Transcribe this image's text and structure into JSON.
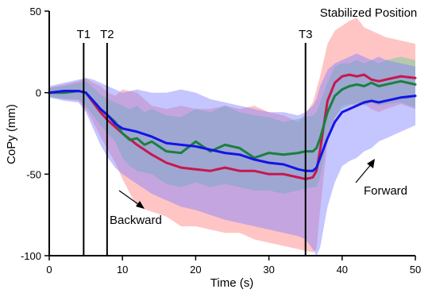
{
  "chart_data": {
    "type": "line",
    "title": "",
    "xlabel": "Time (s)",
    "ylabel": "CoPy (mm)",
    "xlim": [
      0,
      50
    ],
    "ylim": [
      -100,
      50
    ],
    "xticks": [
      0,
      10,
      20,
      30,
      40,
      50
    ],
    "yticks": [
      50,
      0,
      -50,
      -100
    ],
    "grid": false,
    "markers": [
      {
        "label": "T1",
        "x": 4.7
      },
      {
        "label": "T2",
        "x": 7.9
      },
      {
        "label": "T3",
        "x": 35.0
      }
    ],
    "annotations": {
      "stabilized": "Stabilized Position",
      "backward": "Backward",
      "forward": "Forward"
    },
    "series": [
      {
        "color": "#c8164e",
        "band_color": "#ff7f7f",
        "x": [
          0,
          2,
          4,
          5,
          6,
          7,
          8,
          9,
          10,
          12,
          14,
          16,
          18,
          20,
          22,
          24,
          26,
          28,
          30,
          32,
          34,
          35,
          36,
          36.5,
          37,
          38,
          39,
          40,
          41,
          42,
          43,
          44,
          45,
          46,
          48,
          50
        ],
        "y": [
          0,
          1,
          1,
          0,
          -6,
          -12,
          -17,
          -21,
          -25,
          -32,
          -38,
          -43,
          -46,
          -47,
          -48,
          -46,
          -48,
          -48,
          -50,
          -50,
          -52,
          -53,
          -52,
          -48,
          -35,
          -5,
          6,
          10,
          11,
          10,
          11,
          8,
          7,
          8,
          10,
          9
        ],
        "lower": [
          -2,
          -4,
          -5,
          -10,
          -18,
          -27,
          -35,
          -43,
          -53,
          -70,
          -73,
          -76,
          -82,
          -82,
          -84,
          -86,
          -86,
          -90,
          -92,
          -94,
          -96,
          -97,
          -98,
          -96,
          -72,
          -30,
          -16,
          -8,
          -7,
          -8,
          -7,
          -10,
          -12,
          -10,
          -7,
          -10
        ],
        "upper": [
          3,
          5,
          7,
          9,
          6,
          4,
          0,
          -2,
          2,
          0,
          -8,
          -10,
          -8,
          -10,
          -10,
          -8,
          -10,
          -8,
          -12,
          -14,
          -18,
          -13,
          -6,
          2,
          10,
          30,
          38,
          41,
          44,
          46,
          40,
          38,
          36,
          34,
          32,
          30
        ]
      },
      {
        "color": "#1a8040",
        "band_color": "#5fcf8f",
        "x": [
          0,
          2,
          4,
          5,
          6,
          7,
          8,
          9,
          10,
          11,
          12,
          13,
          14,
          16,
          18,
          20,
          22,
          24,
          26,
          28,
          30,
          32,
          34,
          35,
          36,
          36.5,
          37,
          38,
          39,
          40,
          41,
          42,
          43,
          44,
          45,
          46,
          48,
          50
        ],
        "y": [
          0,
          0,
          1,
          0,
          -5,
          -10,
          -14,
          -18,
          -25,
          -29,
          -28,
          -32,
          -30,
          -36,
          -37,
          -30,
          -36,
          -32,
          -34,
          -40,
          -37,
          -38,
          -37,
          -36,
          -36,
          -34,
          -28,
          -12,
          -2,
          2,
          4,
          5,
          4,
          6,
          4,
          5,
          7,
          5
        ],
        "lower": [
          -3,
          -4,
          -4,
          -8,
          -14,
          -20,
          -25,
          -30,
          -40,
          -45,
          -48,
          -49,
          -50,
          -56,
          -58,
          -55,
          -58,
          -56,
          -58,
          -60,
          -60,
          -62,
          -60,
          -59,
          -58,
          -58,
          -52,
          -28,
          -15,
          -10,
          -8,
          -6,
          -8,
          -6,
          -8,
          -7,
          -6,
          -9
        ],
        "upper": [
          3,
          4,
          6,
          7,
          3,
          -1,
          -4,
          -6,
          -8,
          -10,
          -8,
          -12,
          -10,
          -14,
          -15,
          -10,
          -12,
          -8,
          -12,
          -14,
          -15,
          -18,
          -16,
          -15,
          -14,
          -12,
          -6,
          6,
          16,
          18,
          18,
          20,
          18,
          20,
          18,
          20,
          22,
          20
        ]
      },
      {
        "color": "#1414e6",
        "band_color": "#7f7fff",
        "x": [
          0,
          2,
          4,
          5,
          6,
          7,
          8,
          9,
          10,
          12,
          14,
          16,
          18,
          20,
          22,
          24,
          26,
          28,
          30,
          32,
          34,
          35,
          36,
          36.5,
          37,
          38,
          39,
          40,
          41,
          42,
          43,
          44,
          45,
          46,
          48,
          50
        ],
        "y": [
          0,
          1,
          1,
          0,
          -5,
          -10,
          -14,
          -19,
          -22,
          -24,
          -27,
          -31,
          -32,
          -33,
          -35,
          -37,
          -38,
          -41,
          -43,
          -44,
          -47,
          -48,
          -48,
          -46,
          -40,
          -28,
          -18,
          -12,
          -10,
          -8,
          -6,
          -5,
          -6,
          -5,
          -3,
          -2
        ],
        "lower": [
          -3,
          -5,
          -6,
          -12,
          -22,
          -32,
          -40,
          -46,
          -50,
          -56,
          -62,
          -66,
          -70,
          -72,
          -75,
          -78,
          -80,
          -82,
          -84,
          -86,
          -88,
          -90,
          -96,
          -100,
          -95,
          -70,
          -55,
          -45,
          -42,
          -40,
          -36,
          -34,
          -30,
          -28,
          -24,
          -20
        ],
        "upper": [
          4,
          6,
          8,
          9,
          8,
          6,
          4,
          2,
          0,
          2,
          0,
          0,
          2,
          0,
          -4,
          -6,
          -8,
          -10,
          -12,
          -12,
          -14,
          -12,
          -8,
          -4,
          4,
          14,
          18,
          20,
          22,
          24,
          22,
          20,
          22,
          20,
          18,
          16
        ]
      }
    ]
  }
}
